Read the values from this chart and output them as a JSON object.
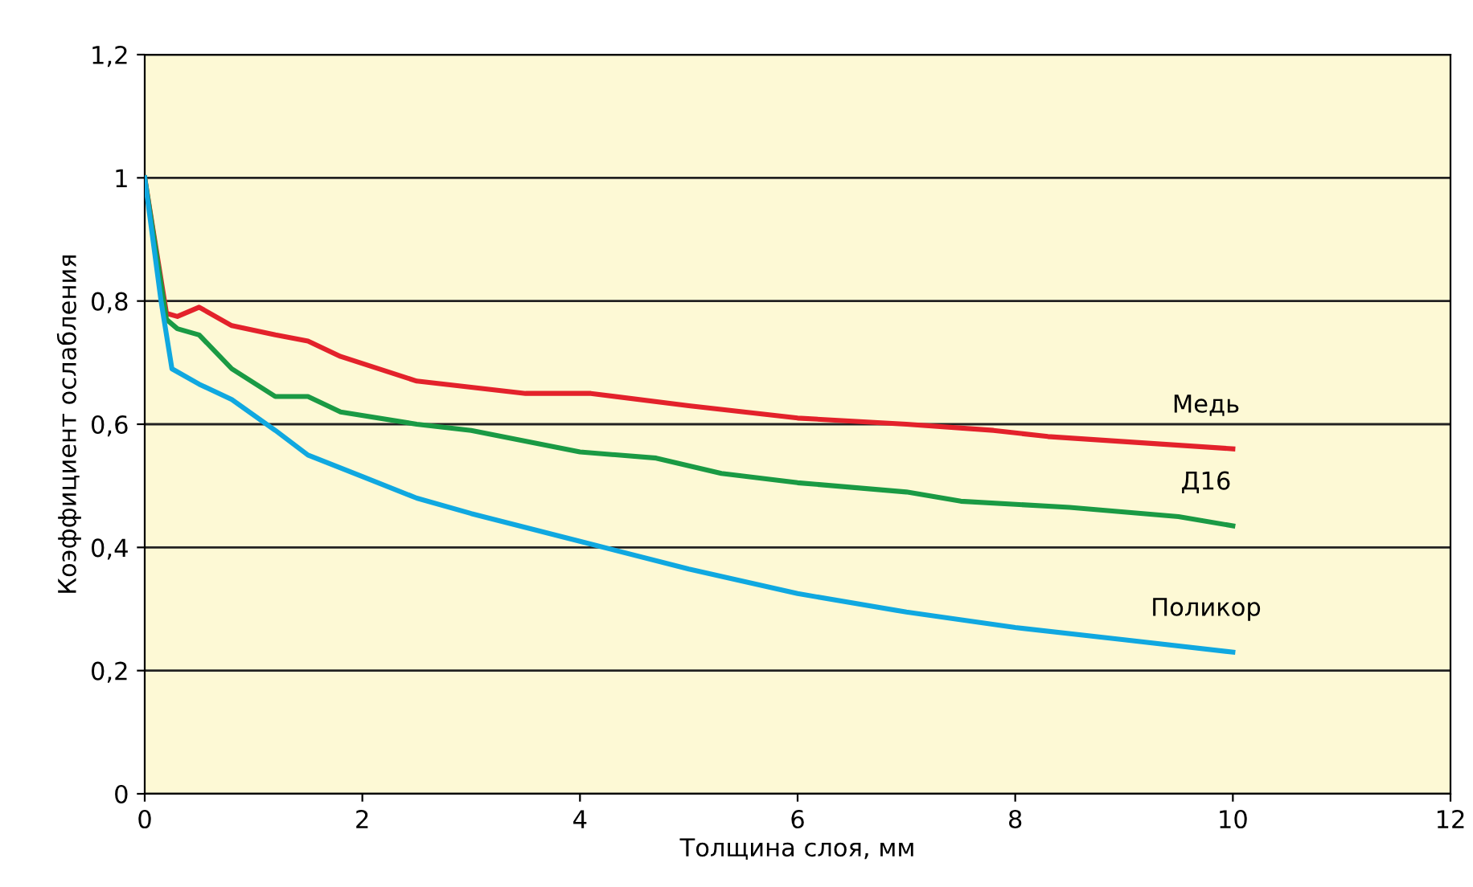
{
  "chart_data": {
    "type": "line",
    "xlabel": "Толщина слоя, мм",
    "ylabel": "Коэффициент ослабления",
    "xlim": [
      0,
      12
    ],
    "ylim": [
      0,
      1.2
    ],
    "xticks": [
      0,
      2,
      4,
      6,
      8,
      10,
      12
    ],
    "yticks": [
      0,
      {
        "value": 0.2,
        "label": "0,2"
      },
      {
        "value": 0.4,
        "label": "0,4"
      },
      {
        "value": 0.6,
        "label": "0,6"
      },
      {
        "value": 0.8,
        "label": "0,8"
      },
      1,
      {
        "value": 1.2,
        "label": "1,2"
      }
    ],
    "grid": "y",
    "legend": false,
    "line_style": "solid",
    "marker": "none",
    "series": [
      {
        "name": "Медь",
        "color": "#e3222b",
        "x": [
          0,
          0.2,
          0.3,
          0.5,
          0.8,
          1.2,
          1.5,
          1.8,
          2.5,
          3,
          3.5,
          4.1,
          5,
          6,
          7,
          7.8,
          8.3,
          10
        ],
        "values": [
          1,
          0.78,
          0.775,
          0.79,
          0.76,
          0.745,
          0.735,
          0.71,
          0.67,
          0.66,
          0.65,
          0.65,
          0.63,
          0.61,
          0.6,
          0.59,
          0.58,
          0.56
        ]
      },
      {
        "name": "Д16",
        "color": "#1a9a44",
        "x": [
          0,
          0.2,
          0.3,
          0.5,
          0.8,
          1.2,
          1.5,
          1.8,
          2.5,
          3,
          4,
          4.7,
          5.3,
          6,
          7,
          7.5,
          8.5,
          9.5,
          10
        ],
        "values": [
          1,
          0.77,
          0.755,
          0.745,
          0.69,
          0.645,
          0.645,
          0.62,
          0.6,
          0.59,
          0.555,
          0.545,
          0.52,
          0.505,
          0.49,
          0.475,
          0.465,
          0.45,
          0.435
        ]
      },
      {
        "name": "Поликор",
        "color": "#10a8e0",
        "x": [
          0,
          0.15,
          0.25,
          0.5,
          0.8,
          1.2,
          1.5,
          2,
          2.5,
          3,
          4,
          5,
          6,
          7,
          8,
          9,
          10
        ],
        "values": [
          1,
          0.8,
          0.69,
          0.665,
          0.64,
          0.59,
          0.55,
          0.515,
          0.48,
          0.455,
          0.41,
          0.365,
          0.325,
          0.295,
          0.27,
          0.25,
          0.23
        ]
      }
    ]
  }
}
